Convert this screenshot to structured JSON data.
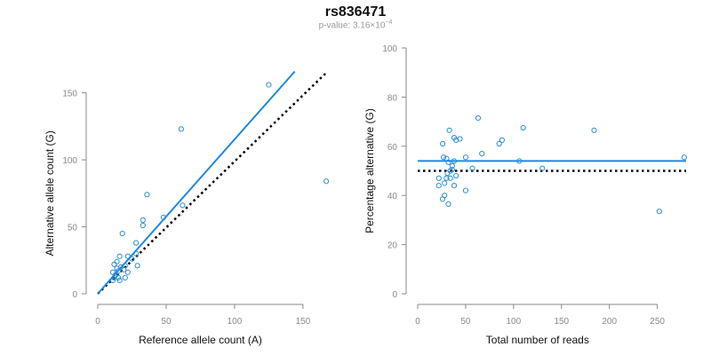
{
  "page": {
    "title": "rs836471",
    "subtitle_prefix": "p-value: 3.16×10",
    "subtitle_exponent": "−4"
  },
  "colors": {
    "points": "#2a8fd6",
    "fit_line": "#1e88e5",
    "reference_line": "#000000",
    "axis": "#888888",
    "tick_text": "#8a8a8a"
  },
  "chart_data": [
    {
      "type": "scatter",
      "title": "",
      "xlabel": "Reference allele count (A)",
      "ylabel": "Alternative allele count (G)",
      "xlim": [
        0,
        165
      ],
      "ylim": [
        0,
        165
      ],
      "xticks": [
        0,
        50,
        100,
        150
      ],
      "yticks": [
        0,
        50,
        100,
        150
      ],
      "grid": false,
      "lines": [
        {
          "role": "fit",
          "style": "solid",
          "x": [
            0,
            144
          ],
          "y": [
            0,
            166
          ]
        },
        {
          "role": "reference",
          "style": "dotted",
          "x": [
            0,
            167
          ],
          "y": [
            0,
            165
          ]
        }
      ],
      "points": [
        {
          "x": 125,
          "y": 156
        },
        {
          "x": 61,
          "y": 123
        },
        {
          "x": 167,
          "y": 84
        },
        {
          "x": 36,
          "y": 74
        },
        {
          "x": 62,
          "y": 66
        },
        {
          "x": 48,
          "y": 57
        },
        {
          "x": 33,
          "y": 55
        },
        {
          "x": 33,
          "y": 51
        },
        {
          "x": 18,
          "y": 45
        },
        {
          "x": 28,
          "y": 38
        },
        {
          "x": 28,
          "y": 30
        },
        {
          "x": 29,
          "y": 21
        },
        {
          "x": 22,
          "y": 28
        },
        {
          "x": 25,
          "y": 26
        },
        {
          "x": 16,
          "y": 28
        },
        {
          "x": 14,
          "y": 24
        },
        {
          "x": 12,
          "y": 22
        },
        {
          "x": 20,
          "y": 21
        },
        {
          "x": 17,
          "y": 20
        },
        {
          "x": 19,
          "y": 18
        },
        {
          "x": 22,
          "y": 16
        },
        {
          "x": 15,
          "y": 17
        },
        {
          "x": 11,
          "y": 16
        },
        {
          "x": 13,
          "y": 14
        },
        {
          "x": 12,
          "y": 12
        },
        {
          "x": 15,
          "y": 12
        },
        {
          "x": 11,
          "y": 10
        },
        {
          "x": 16,
          "y": 10
        },
        {
          "x": 20,
          "y": 12
        },
        {
          "x": 14,
          "y": 19
        }
      ]
    },
    {
      "type": "scatter",
      "title": "",
      "xlabel": "Total number of reads",
      "ylabel": "Percentage alternative (G)",
      "xlim": [
        0,
        280
      ],
      "ylim": [
        0,
        100
      ],
      "xticks": [
        0,
        50,
        100,
        150,
        200,
        250
      ],
      "yticks": [
        0,
        20,
        40,
        60,
        80,
        100
      ],
      "grid": false,
      "lines": [
        {
          "role": "fit",
          "style": "solid",
          "x": [
            0,
            280
          ],
          "y": [
            54,
            54
          ]
        },
        {
          "role": "reference",
          "style": "dotted",
          "x": [
            0,
            280
          ],
          "y": [
            50,
            50
          ]
        }
      ],
      "points": [
        {
          "x": 278,
          "y": 55.5
        },
        {
          "x": 252,
          "y": 33.5
        },
        {
          "x": 184,
          "y": 66.5
        },
        {
          "x": 130,
          "y": 51
        },
        {
          "x": 110,
          "y": 67.5
        },
        {
          "x": 106,
          "y": 54
        },
        {
          "x": 88,
          "y": 62.5
        },
        {
          "x": 85,
          "y": 61
        },
        {
          "x": 67,
          "y": 57
        },
        {
          "x": 63,
          "y": 71.5
        },
        {
          "x": 57,
          "y": 51
        },
        {
          "x": 50,
          "y": 55.5
        },
        {
          "x": 50,
          "y": 42
        },
        {
          "x": 44,
          "y": 63
        },
        {
          "x": 40,
          "y": 62.5
        },
        {
          "x": 38,
          "y": 63.5
        },
        {
          "x": 33,
          "y": 66.5
        },
        {
          "x": 38,
          "y": 54
        },
        {
          "x": 36,
          "y": 52
        },
        {
          "x": 34,
          "y": 50
        },
        {
          "x": 32,
          "y": 53.5
        },
        {
          "x": 30,
          "y": 55
        },
        {
          "x": 27,
          "y": 55.5
        },
        {
          "x": 26,
          "y": 61
        },
        {
          "x": 30,
          "y": 47
        },
        {
          "x": 34,
          "y": 47
        },
        {
          "x": 22,
          "y": 47
        },
        {
          "x": 28,
          "y": 45
        },
        {
          "x": 40,
          "y": 48
        },
        {
          "x": 38,
          "y": 44
        },
        {
          "x": 22,
          "y": 44
        },
        {
          "x": 28,
          "y": 40
        },
        {
          "x": 26,
          "y": 38.5
        },
        {
          "x": 32,
          "y": 36.5
        },
        {
          "x": 36,
          "y": 50.5
        },
        {
          "x": 31,
          "y": 49
        }
      ]
    }
  ]
}
